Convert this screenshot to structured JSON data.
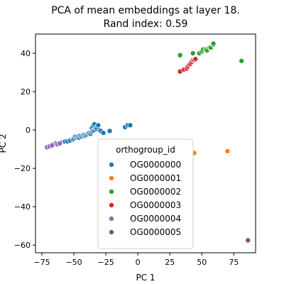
{
  "chart_data": {
    "type": "scatter",
    "title_line1": "PCA of mean embeddings at layer 18.",
    "title_line2": "Rand index: 0.59",
    "xlabel": "PC 1",
    "ylabel": "PC 2",
    "xlim": [
      -80,
      92
    ],
    "ylim": [
      -64,
      50
    ],
    "xticks": [
      -75,
      -50,
      -25,
      0,
      25,
      50,
      75
    ],
    "yticks": [
      -60,
      -40,
      -20,
      0,
      20,
      40
    ],
    "legend": {
      "title": "orthogroup_id",
      "placement": "lower-center"
    },
    "series": [
      {
        "name": "OG0000000",
        "color": "#1f77b4",
        "points": [
          [
            -70,
            -9
          ],
          [
            -68,
            -8
          ],
          [
            -66,
            -7.5
          ],
          [
            -64,
            -7
          ],
          [
            -62,
            -7
          ],
          [
            -60,
            -6.5
          ],
          [
            -57,
            -6
          ],
          [
            -55,
            -6
          ],
          [
            -53,
            -5.5
          ],
          [
            -51,
            -5
          ],
          [
            -50,
            -4.5
          ],
          [
            -49,
            -3.5
          ],
          [
            -48,
            -4
          ],
          [
            -47,
            -3.5
          ],
          [
            -46,
            -4
          ],
          [
            -45,
            -3
          ],
          [
            -44,
            -3.5
          ],
          [
            -43,
            -3
          ],
          [
            -42,
            -2.5
          ],
          [
            -41,
            -3
          ],
          [
            -40,
            -2.5
          ],
          [
            -39,
            -2
          ],
          [
            -38,
            -1.5
          ],
          [
            -37,
            -2
          ],
          [
            -36,
            -1
          ],
          [
            -36,
            1
          ],
          [
            -35,
            -0.5
          ],
          [
            -35,
            2
          ],
          [
            -34,
            0
          ],
          [
            -34,
            3
          ],
          [
            -33,
            1
          ],
          [
            -32,
            0.5
          ],
          [
            -31,
            2.5
          ],
          [
            -30,
            0
          ],
          [
            -29,
            -0.5
          ],
          [
            -27,
            -1.5
          ],
          [
            -22,
            -0.5
          ],
          [
            -10,
            1.5
          ],
          [
            -8,
            2.5
          ],
          [
            -6,
            2.5
          ]
        ]
      },
      {
        "name": "OG0000001",
        "color": "#ff7f0e",
        "points": [
          [
            44,
            -12
          ],
          [
            70,
            -11
          ]
        ]
      },
      {
        "name": "OG0000002",
        "color": "#2ca02c",
        "points": [
          [
            33,
            39
          ],
          [
            43,
            40
          ],
          [
            48,
            40
          ],
          [
            50,
            41
          ],
          [
            51,
            42
          ],
          [
            53,
            42
          ],
          [
            54,
            41.5
          ],
          [
            56,
            43
          ],
          [
            57,
            43
          ],
          [
            59,
            44.5
          ],
          [
            59,
            45
          ],
          [
            81,
            36
          ]
        ]
      },
      {
        "name": "OG0000003",
        "color": "#d62728",
        "points": [
          [
            33,
            30.5
          ],
          [
            36,
            31.5
          ],
          [
            38,
            32
          ],
          [
            39,
            33
          ],
          [
            40,
            34
          ],
          [
            41,
            34.5
          ],
          [
            42,
            35.5
          ],
          [
            43,
            36.5
          ],
          [
            44,
            36.5
          ],
          [
            45,
            37
          ]
        ]
      },
      {
        "name": "OG0000004",
        "color": "#9467bd",
        "points": [
          [
            -71,
            -9
          ],
          [
            -69,
            -8.5
          ],
          [
            -67,
            -8
          ],
          [
            -63,
            -7.5
          ],
          [
            -61,
            -7
          ]
        ]
      },
      {
        "name": "OG0000005",
        "color": "#8c564b",
        "points": [
          [
            86,
            -57.5
          ]
        ]
      }
    ]
  }
}
